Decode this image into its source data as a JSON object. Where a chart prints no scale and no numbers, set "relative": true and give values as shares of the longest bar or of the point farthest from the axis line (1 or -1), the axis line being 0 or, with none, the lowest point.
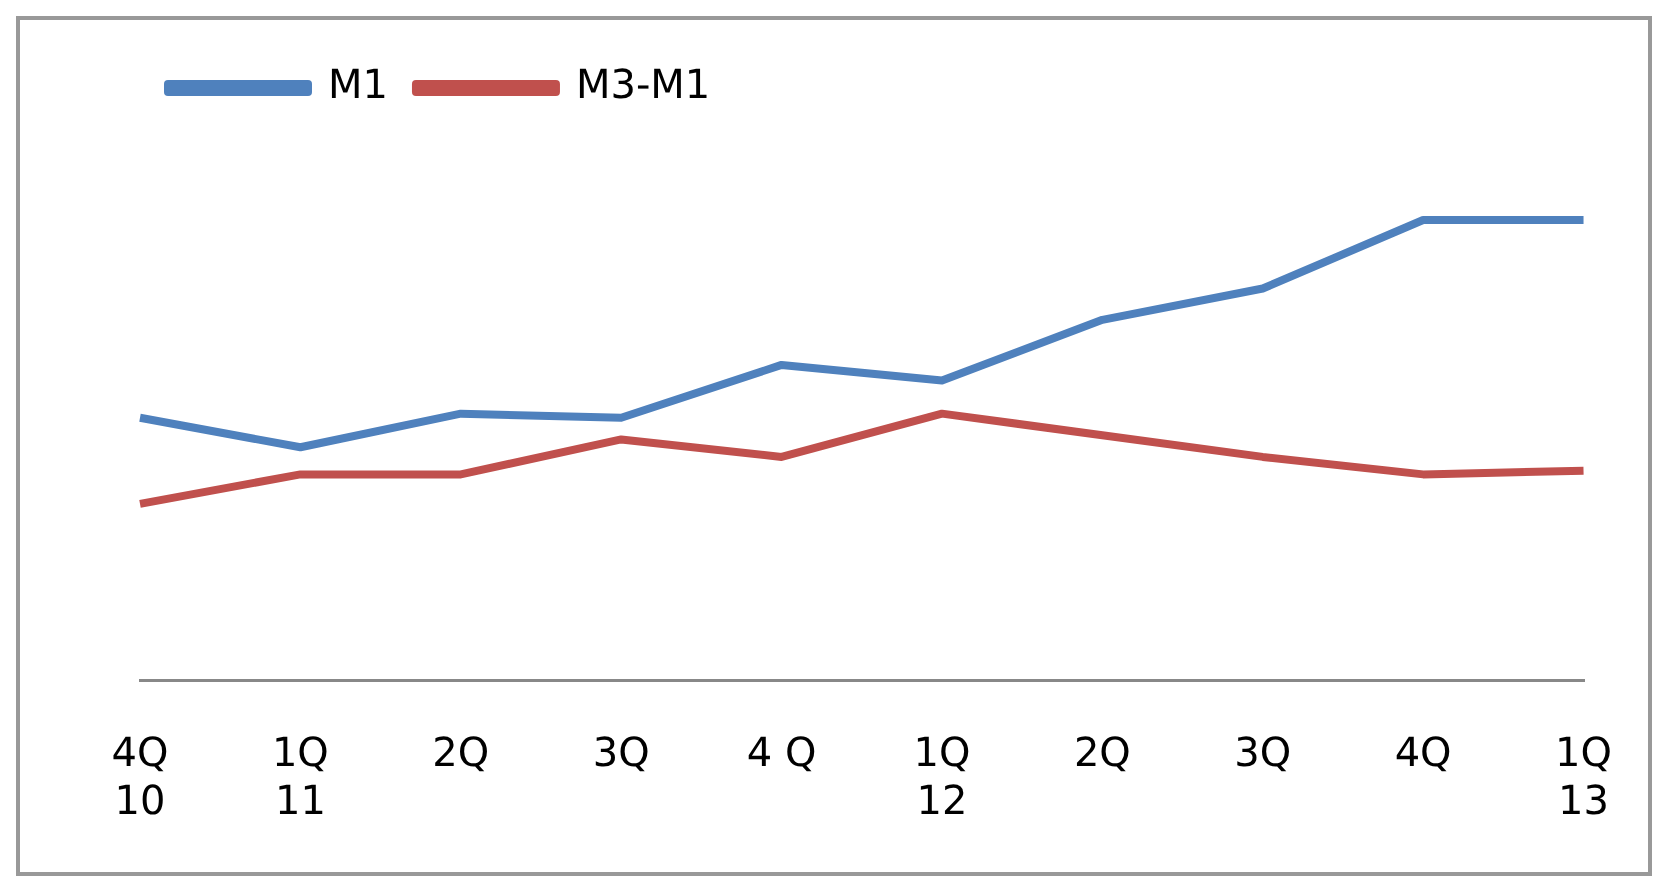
{
  "chart_data": {
    "type": "line",
    "relative": true,
    "legend": "top left",
    "marker": "none",
    "line_style": "solid",
    "categories": [
      "4Q\n10",
      "1Q\n11",
      "2Q",
      "3Q",
      "4 Q",
      "1Q\n12",
      "2Q",
      "3Q",
      "4Q",
      "1Q\n13"
    ],
    "series": [
      {
        "name": "M1",
        "color": "#4f81bd",
        "values": [
          0.57,
          0.506,
          0.579,
          0.57,
          0.685,
          0.651,
          0.783,
          0.851,
          1,
          1
        ]
      },
      {
        "name": "M3-M1",
        "color": "#c0504d",
        "values": [
          0.383,
          0.447,
          0.447,
          0.523,
          0.485,
          0.579,
          0.532,
          0.485,
          0.447,
          0.455
        ]
      }
    ]
  }
}
